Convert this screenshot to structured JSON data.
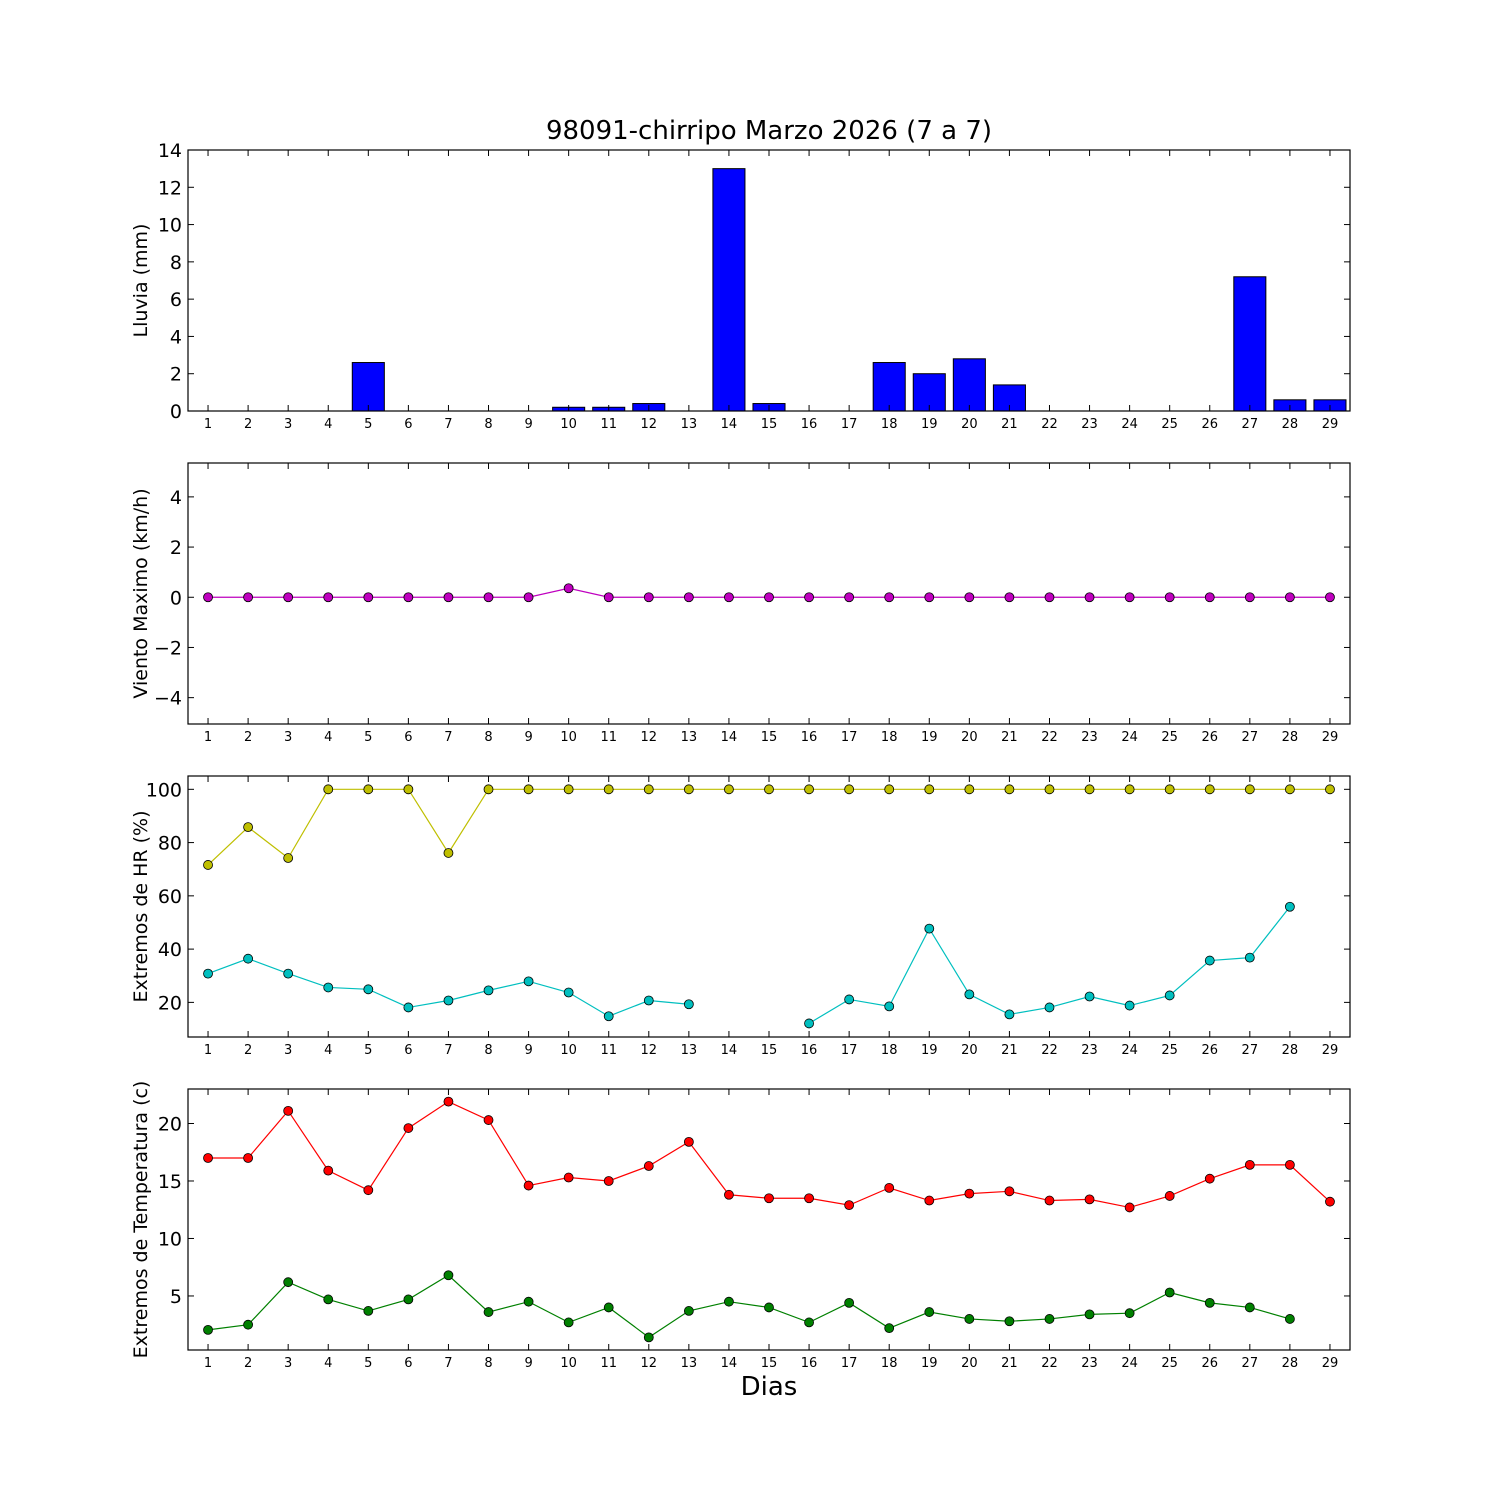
{
  "chart_data": {
    "title": "98091-chirripo Marzo 2026  (7 a 7)",
    "xlabel": "Dias",
    "x": [
      1,
      2,
      3,
      4,
      5,
      6,
      7,
      8,
      9,
      10,
      11,
      12,
      13,
      14,
      15,
      16,
      17,
      18,
      19,
      20,
      21,
      22,
      23,
      24,
      25,
      26,
      27,
      28,
      29
    ],
    "xlim": [
      0.5,
      29.5
    ],
    "panels": [
      {
        "type": "bar",
        "ylabel": "Lluvia (mm)",
        "ylim": [
          0,
          14
        ],
        "yticks": [
          0,
          2,
          4,
          6,
          8,
          10,
          12,
          14
        ],
        "series": [
          {
            "name": "Lluvia",
            "color": "#0000ff",
            "values": [
              0,
              0,
              0,
              0,
              2.6,
              0,
              0,
              0,
              0,
              0.2,
              0.2,
              0.4,
              0,
              13.0,
              0.4,
              0,
              0,
              2.6,
              2.0,
              2.8,
              1.4,
              0,
              0,
              0,
              0,
              0,
              7.2,
              0.6,
              0.6
            ]
          }
        ]
      },
      {
        "type": "line",
        "ylabel": "Viento Maximo (km/h)",
        "ylim": [
          -5.05,
          5.35
        ],
        "yticks": [
          -4,
          -2,
          0,
          2,
          4
        ],
        "series": [
          {
            "name": "Viento",
            "color": "#bf00bf",
            "values": [
              0,
              0,
              0,
              0,
              0,
              0,
              0,
              0,
              0,
              0.36,
              0,
              0,
              0,
              0,
              0,
              0,
              0,
              0,
              0,
              0,
              0,
              0,
              0,
              0,
              0,
              0,
              0,
              0,
              0
            ]
          }
        ]
      },
      {
        "type": "line",
        "ylabel": "Extremos de HR (%)",
        "ylim": [
          7,
          105
        ],
        "yticks": [
          20,
          40,
          60,
          80,
          100
        ],
        "series": [
          {
            "name": "HR max",
            "color": "#bfbf00",
            "values": [
              71.6,
              85.8,
              74.2,
              100,
              100,
              100,
              76.1,
              100,
              100,
              100,
              100,
              100,
              100,
              100,
              100,
              100,
              100,
              100,
              100,
              100,
              100,
              100,
              100,
              100,
              100,
              100,
              100,
              100,
              100
            ]
          },
          {
            "name": "HR min",
            "color": "#00bfbf",
            "values": [
              30.8,
              36.4,
              30.8,
              25.6,
              24.9,
              18.1,
              20.7,
              24.5,
              27.9,
              23.7,
              14.8,
              20.7,
              19.3,
              null,
              null,
              12.1,
              21.1,
              18.5,
              47.7,
              23.0,
              15.5,
              18.1,
              22.2,
              18.8,
              22.6,
              35.7,
              36.8,
              55.9,
              null
            ]
          }
        ]
      },
      {
        "type": "line",
        "ylabel": "Extremos de Temperatura (c)",
        "ylim": [
          0.3,
          23
        ],
        "yticks": [
          5,
          10,
          15,
          20
        ],
        "series": [
          {
            "name": "Temp max",
            "color": "#ff0000",
            "values": [
              17.0,
              17.0,
              21.1,
              15.9,
              14.2,
              19.6,
              21.9,
              20.3,
              14.6,
              15.3,
              15.0,
              16.3,
              18.4,
              13.8,
              13.5,
              13.5,
              12.9,
              14.4,
              13.3,
              13.9,
              14.1,
              13.3,
              13.4,
              12.7,
              13.7,
              15.2,
              16.4,
              16.4,
              13.2
            ]
          },
          {
            "name": "Temp min",
            "color": "#008000",
            "values": [
              2.05,
              2.5,
              6.2,
              4.7,
              3.7,
              4.7,
              6.8,
              3.6,
              4.5,
              2.7,
              4.0,
              1.4,
              3.7,
              4.5,
              4.0,
              2.7,
              4.4,
              2.2,
              3.6,
              3.0,
              2.8,
              3.0,
              3.4,
              3.5,
              5.3,
              4.4,
              4.0,
              3.0,
              null
            ]
          }
        ]
      }
    ]
  }
}
